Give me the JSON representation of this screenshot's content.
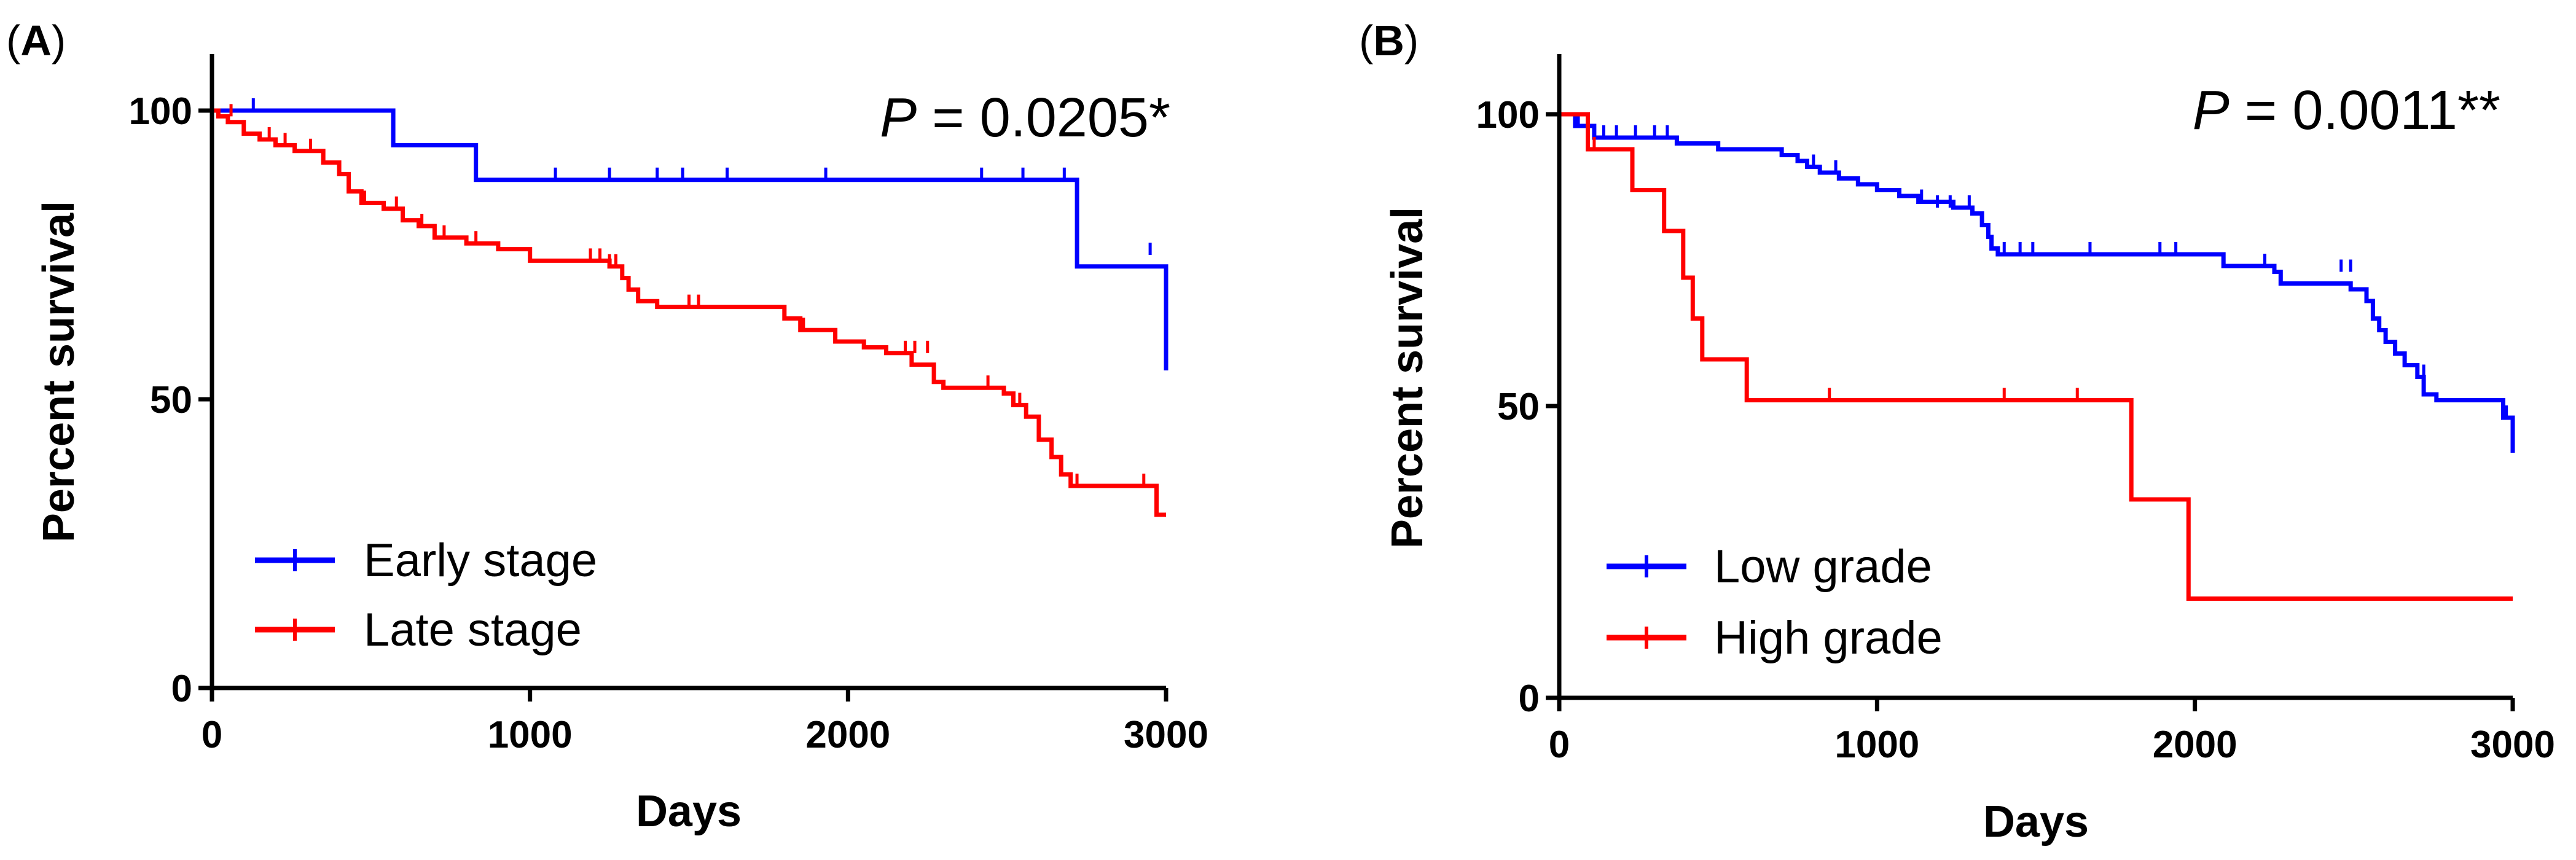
{
  "chart_data": [
    {
      "type": "line",
      "subtype": "kaplan-meier",
      "panel_label": "A",
      "title": "",
      "xlabel": "Days",
      "ylabel": "Percent survival",
      "xlim": [
        0,
        3000
      ],
      "ylim": [
        0,
        100
      ],
      "xticks": [
        "0",
        "1000",
        "2000",
        "3000"
      ],
      "yticks": [
        "0",
        "50",
        "100"
      ],
      "pvalue": {
        "label": "P",
        "text": " = 0.0205*"
      },
      "legend_position": "bottom-left",
      "series": [
        {
          "name": "Early stage",
          "color": "#0000ff",
          "steps": [
            [
              0,
              100
            ],
            [
              570,
              100
            ],
            [
              570,
              94
            ],
            [
              830,
              94
            ],
            [
              830,
              88
            ],
            [
              2720,
              88
            ],
            [
              2720,
              73
            ],
            [
              3000,
              73
            ],
            [
              3000,
              55
            ]
          ],
          "censored": [
            [
              130,
              100
            ],
            [
              1080,
              88
            ],
            [
              1250,
              88
            ],
            [
              1400,
              88
            ],
            [
              1480,
              88
            ],
            [
              1620,
              88
            ],
            [
              1930,
              88
            ],
            [
              2420,
              88
            ],
            [
              2550,
              88
            ],
            [
              2680,
              88
            ],
            [
              2950,
              75
            ]
          ]
        },
        {
          "name": "Late stage",
          "color": "#ff0000",
          "steps": [
            [
              0,
              100
            ],
            [
              20,
              99
            ],
            [
              50,
              98
            ],
            [
              100,
              96
            ],
            [
              150,
              95
            ],
            [
              200,
              94
            ],
            [
              260,
              93
            ],
            [
              350,
              91
            ],
            [
              400,
              89
            ],
            [
              430,
              86
            ],
            [
              470,
              84
            ],
            [
              540,
              83
            ],
            [
              600,
              81
            ],
            [
              650,
              80
            ],
            [
              700,
              78
            ],
            [
              800,
              77
            ],
            [
              900,
              76
            ],
            [
              1000,
              74
            ],
            [
              1250,
              73
            ],
            [
              1290,
              71
            ],
            [
              1310,
              69
            ],
            [
              1340,
              67
            ],
            [
              1400,
              66
            ],
            [
              1800,
              64
            ],
            [
              1850,
              62
            ],
            [
              1960,
              60
            ],
            [
              2050,
              59
            ],
            [
              2120,
              58
            ],
            [
              2200,
              56
            ],
            [
              2270,
              53
            ],
            [
              2300,
              52
            ],
            [
              2490,
              51
            ],
            [
              2520,
              49
            ],
            [
              2560,
              47
            ],
            [
              2600,
              43
            ],
            [
              2640,
              40
            ],
            [
              2670,
              37
            ],
            [
              2700,
              35
            ],
            [
              2970,
              35
            ],
            [
              2970,
              30
            ],
            [
              3000,
              30
            ]
          ],
          "censored": [
            [
              60,
              99
            ],
            [
              180,
              95
            ],
            [
              230,
              94
            ],
            [
              310,
              93
            ],
            [
              480,
              84
            ],
            [
              580,
              83
            ],
            [
              660,
              80
            ],
            [
              700,
              78
            ],
            [
              730,
              78
            ],
            [
              830,
              77
            ],
            [
              1000,
              74
            ],
            [
              1190,
              74
            ],
            [
              1220,
              74
            ],
            [
              1250,
              73
            ],
            [
              1270,
              73
            ],
            [
              1290,
              71
            ],
            [
              1500,
              66
            ],
            [
              1530,
              66
            ],
            [
              1860,
              62
            ],
            [
              2180,
              58
            ],
            [
              2210,
              58
            ],
            [
              2250,
              58
            ],
            [
              2440,
              52
            ],
            [
              2540,
              49
            ],
            [
              2720,
              35
            ],
            [
              2930,
              35
            ]
          ]
        }
      ]
    },
    {
      "type": "line",
      "subtype": "kaplan-meier",
      "panel_label": "B",
      "title": "",
      "xlabel": "Days",
      "ylabel": "Percent survival",
      "xlim": [
        0,
        3000
      ],
      "ylim": [
        0,
        100
      ],
      "xticks": [
        "0",
        "1000",
        "2000",
        "3000"
      ],
      "yticks": [
        "0",
        "50",
        "100"
      ],
      "pvalue": {
        "label": "P",
        "text": " = 0.0011**"
      },
      "legend_position": "bottom-left",
      "series": [
        {
          "name": "Low grade",
          "color": "#0000ff",
          "steps": [
            [
              0,
              100
            ],
            [
              50,
              98
            ],
            [
              110,
              96
            ],
            [
              370,
              95
            ],
            [
              500,
              94
            ],
            [
              700,
              93
            ],
            [
              750,
              92
            ],
            [
              780,
              91
            ],
            [
              820,
              90
            ],
            [
              880,
              89
            ],
            [
              940,
              88
            ],
            [
              1000,
              87
            ],
            [
              1070,
              86
            ],
            [
              1130,
              85
            ],
            [
              1240,
              84
            ],
            [
              1300,
              83
            ],
            [
              1330,
              81
            ],
            [
              1350,
              79
            ],
            [
              1360,
              77
            ],
            [
              1380,
              76
            ],
            [
              2080,
              76
            ],
            [
              2090,
              74
            ],
            [
              2250,
              73
            ],
            [
              2270,
              71
            ],
            [
              2490,
              70
            ],
            [
              2540,
              68
            ],
            [
              2560,
              65
            ],
            [
              2580,
              63
            ],
            [
              2600,
              61
            ],
            [
              2630,
              59
            ],
            [
              2660,
              57
            ],
            [
              2700,
              55
            ],
            [
              2720,
              52
            ],
            [
              2760,
              51
            ],
            [
              2970,
              51
            ],
            [
              2970,
              48
            ],
            [
              3000,
              48
            ],
            [
              3000,
              42
            ]
          ],
          "censored": [
            [
              60,
              98
            ],
            [
              90,
              97
            ],
            [
              140,
              96
            ],
            [
              180,
              96
            ],
            [
              240,
              96
            ],
            [
              300,
              96
            ],
            [
              340,
              96
            ],
            [
              800,
              91
            ],
            [
              870,
              90
            ],
            [
              1140,
              85
            ],
            [
              1190,
              84
            ],
            [
              1230,
              84
            ],
            [
              1290,
              84
            ],
            [
              1400,
              76
            ],
            [
              1450,
              76
            ],
            [
              1490,
              76
            ],
            [
              1670,
              76
            ],
            [
              1890,
              76
            ],
            [
              1940,
              76
            ],
            [
              2220,
              74
            ],
            [
              2460,
              73
            ],
            [
              2490,
              73
            ],
            [
              2720,
              55
            ],
            [
              2980,
              48
            ]
          ]
        },
        {
          "name": "High grade",
          "color": "#ff0000",
          "steps": [
            [
              0,
              100
            ],
            [
              90,
              94
            ],
            [
              230,
              87
            ],
            [
              330,
              80
            ],
            [
              390,
              72
            ],
            [
              420,
              65
            ],
            [
              450,
              58
            ],
            [
              590,
              58
            ],
            [
              590,
              51
            ],
            [
              1800,
              51
            ],
            [
              1800,
              34
            ],
            [
              1980,
              34
            ],
            [
              1980,
              17
            ],
            [
              3000,
              17
            ]
          ],
          "censored": [
            [
              110,
              94
            ],
            [
              850,
              51
            ],
            [
              1400,
              51
            ],
            [
              1630,
              51
            ]
          ]
        }
      ]
    }
  ]
}
